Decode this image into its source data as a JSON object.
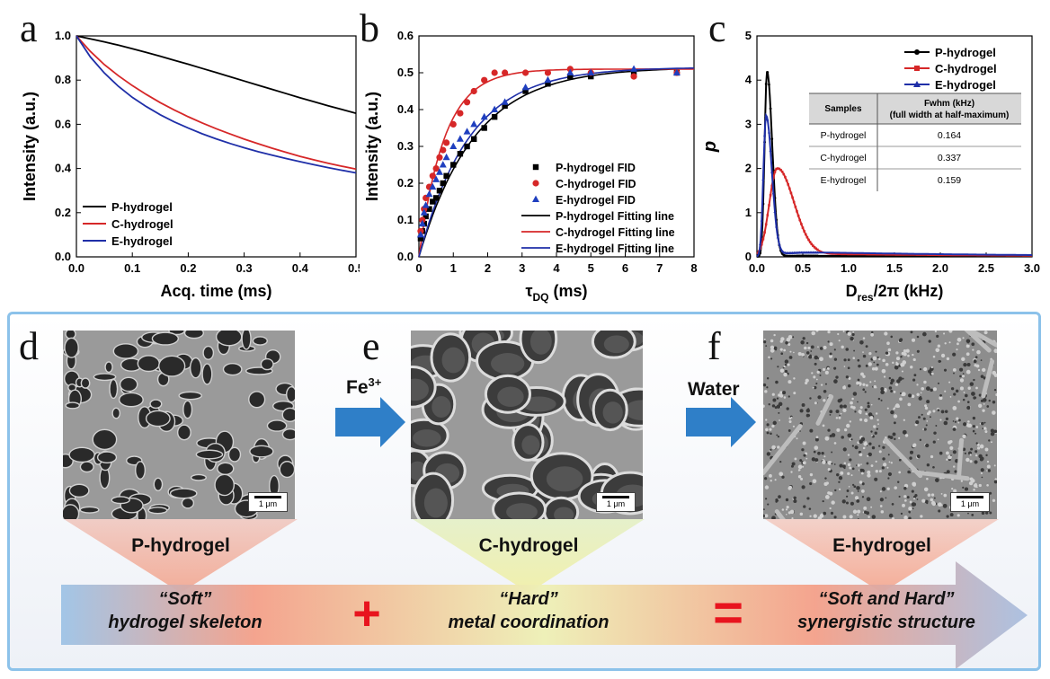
{
  "panels": {
    "a": "a",
    "b": "b",
    "c": "c",
    "d": "d",
    "e": "e",
    "f": "f"
  },
  "chart_data": [
    {
      "type": "line",
      "xlabel": "Acq. time (ms)",
      "ylabel": "Intensity (a.u.)",
      "xlim": [
        0,
        0.5
      ],
      "ylim": [
        0,
        1.0
      ],
      "xticks": [
        "0.0",
        "0.1",
        "0.2",
        "0.3",
        "0.4",
        "0.5"
      ],
      "yticks": [
        "0.0",
        "0.2",
        "0.4",
        "0.6",
        "0.8",
        "1.0"
      ],
      "legend_position": "bottom-left",
      "x": [
        0,
        0.025,
        0.05,
        0.075,
        0.1,
        0.125,
        0.15,
        0.175,
        0.2,
        0.225,
        0.25,
        0.275,
        0.3,
        0.325,
        0.35,
        0.375,
        0.4,
        0.425,
        0.45,
        0.475,
        0.5
      ],
      "series": [
        {
          "name": "P-hydrogel",
          "color": "#000000",
          "values": [
            1.0,
            0.987,
            0.973,
            0.958,
            0.942,
            0.925,
            0.908,
            0.89,
            0.872,
            0.853,
            0.834,
            0.815,
            0.796,
            0.777,
            0.758,
            0.739,
            0.72,
            0.702,
            0.684,
            0.667,
            0.65
          ]
        },
        {
          "name": "C-hydrogel",
          "color": "#d62728",
          "values": [
            1.0,
            0.93,
            0.87,
            0.82,
            0.775,
            0.735,
            0.698,
            0.665,
            0.634,
            0.606,
            0.58,
            0.556,
            0.533,
            0.512,
            0.492,
            0.473,
            0.455,
            0.439,
            0.424,
            0.41,
            0.397
          ]
        },
        {
          "name": "E-hydrogel",
          "color": "#1f2fa8",
          "values": [
            1.0,
            0.905,
            0.832,
            0.772,
            0.722,
            0.68,
            0.643,
            0.611,
            0.583,
            0.557,
            0.534,
            0.513,
            0.494,
            0.476,
            0.46,
            0.445,
            0.431,
            0.417,
            0.404,
            0.392,
            0.38
          ]
        }
      ]
    },
    {
      "type": "scatter",
      "xlabel": "τ",
      "xlabel_sub": "DQ",
      "xlabel_unit": " (ms)",
      "ylabel": "Intensity (a.u.)",
      "xlim": [
        0,
        8
      ],
      "ylim": [
        0,
        0.6
      ],
      "xticks": [
        "0",
        "1",
        "2",
        "3",
        "4",
        "5",
        "6",
        "7",
        "8"
      ],
      "yticks": [
        "0.0",
        "0.1",
        "0.2",
        "0.3",
        "0.4",
        "0.5",
        "0.6"
      ],
      "legend_position": "bottom-right",
      "scatter": [
        {
          "name": "P-hydrogel FID",
          "color": "#000000",
          "marker": "square",
          "x": [
            0.05,
            0.1,
            0.15,
            0.2,
            0.3,
            0.4,
            0.5,
            0.6,
            0.7,
            0.8,
            1.0,
            1.2,
            1.4,
            1.6,
            1.9,
            2.2,
            2.5,
            3.1,
            3.75,
            4.4,
            5.0,
            6.25,
            7.5
          ],
          "y": [
            0.05,
            0.07,
            0.09,
            0.11,
            0.13,
            0.15,
            0.16,
            0.18,
            0.2,
            0.22,
            0.25,
            0.28,
            0.3,
            0.32,
            0.35,
            0.38,
            0.41,
            0.45,
            0.47,
            0.49,
            0.49,
            0.5,
            0.5
          ]
        },
        {
          "name": "C-hydrogel FID",
          "color": "#d62728",
          "marker": "circle",
          "x": [
            0.05,
            0.1,
            0.15,
            0.2,
            0.3,
            0.4,
            0.5,
            0.6,
            0.7,
            0.8,
            1.0,
            1.2,
            1.4,
            1.6,
            1.9,
            2.2,
            2.5,
            3.1,
            3.75,
            4.4,
            5.0,
            6.25,
            7.5
          ],
          "y": [
            0.07,
            0.1,
            0.13,
            0.16,
            0.19,
            0.22,
            0.24,
            0.27,
            0.29,
            0.31,
            0.36,
            0.39,
            0.42,
            0.45,
            0.48,
            0.5,
            0.5,
            0.5,
            0.5,
            0.51,
            0.5,
            0.49,
            0.5
          ]
        },
        {
          "name": "E-hydrogel FID",
          "color": "#1f3fbf",
          "marker": "triangle",
          "x": [
            0.05,
            0.1,
            0.15,
            0.2,
            0.3,
            0.4,
            0.5,
            0.6,
            0.7,
            0.8,
            1.0,
            1.2,
            1.4,
            1.6,
            1.9,
            2.2,
            2.5,
            3.1,
            3.75,
            4.4,
            5.0,
            6.25,
            7.5
          ],
          "y": [
            0.06,
            0.09,
            0.12,
            0.14,
            0.17,
            0.19,
            0.21,
            0.23,
            0.25,
            0.27,
            0.3,
            0.32,
            0.34,
            0.36,
            0.38,
            0.4,
            0.42,
            0.46,
            0.48,
            0.5,
            0.5,
            0.51,
            0.5
          ]
        }
      ],
      "lines": [
        {
          "name": "P-hydrogel Fitting line",
          "color": "#000000",
          "plateau": 0.515,
          "rate": 0.62
        },
        {
          "name": "C-hydrogel Fitting line",
          "color": "#d62728",
          "plateau": 0.51,
          "rate": 1.35
        },
        {
          "name": "E-hydrogel Fitting line",
          "color": "#1f2fa8",
          "plateau": 0.515,
          "rate": 0.68
        }
      ]
    },
    {
      "type": "line",
      "xlabel": "D",
      "xlabel_sub": "res",
      "xlabel_unit": "/2π (kHz)",
      "ylabel": "p",
      "xlim": [
        0,
        3.0
      ],
      "ylim": [
        0,
        5
      ],
      "xticks": [
        "0.0",
        "0.5",
        "1.0",
        "1.5",
        "2.0",
        "2.5",
        "3.0"
      ],
      "yticks": [
        "0",
        "1",
        "2",
        "3",
        "4",
        "5"
      ],
      "legend_position": "top-right",
      "series": [
        {
          "name": "P-hydrogel",
          "color": "#000000",
          "peak_x": 0.11,
          "peak_y": 4.2,
          "width": 0.05,
          "tail": 0.03
        },
        {
          "name": "C-hydrogel",
          "color": "#d62728",
          "peak_x": 0.22,
          "peak_y": 2.0,
          "width": 0.16,
          "tail": 0.08
        },
        {
          "name": "E-hydrogel",
          "color": "#1f2fa8",
          "peak_x": 0.1,
          "peak_y": 3.2,
          "width": 0.055,
          "tail": 0.13
        }
      ],
      "table": {
        "headers": [
          "Samples",
          "Fwhm (kHz)",
          "(full width at half-maximum)"
        ],
        "rows": [
          [
            "P-hydrogel",
            "0.164"
          ],
          [
            "C-hydrogel",
            "0.337"
          ],
          [
            "E-hydrogel",
            "0.159"
          ]
        ]
      }
    }
  ],
  "bottom": {
    "samples": [
      "P-hydrogel",
      "C-hydrogel",
      "E-hydrogel"
    ],
    "step1": "Fe",
    "step1_sup": "3+",
    "step2": "Water",
    "scale_bar": "1 μm",
    "desc1_l1": "“Soft”",
    "desc1_l2": "hydrogel skeleton",
    "desc2_l1": "“Hard”",
    "desc2_l2": "metal coordination",
    "desc3_l1": "“Soft and Hard”",
    "desc3_l2": "synergistic structure",
    "plus": "+",
    "equals": "=",
    "colors": {
      "arrow": "#2f7fc8",
      "plus": "#e8141e",
      "box_border": "#8cc2ea"
    }
  }
}
